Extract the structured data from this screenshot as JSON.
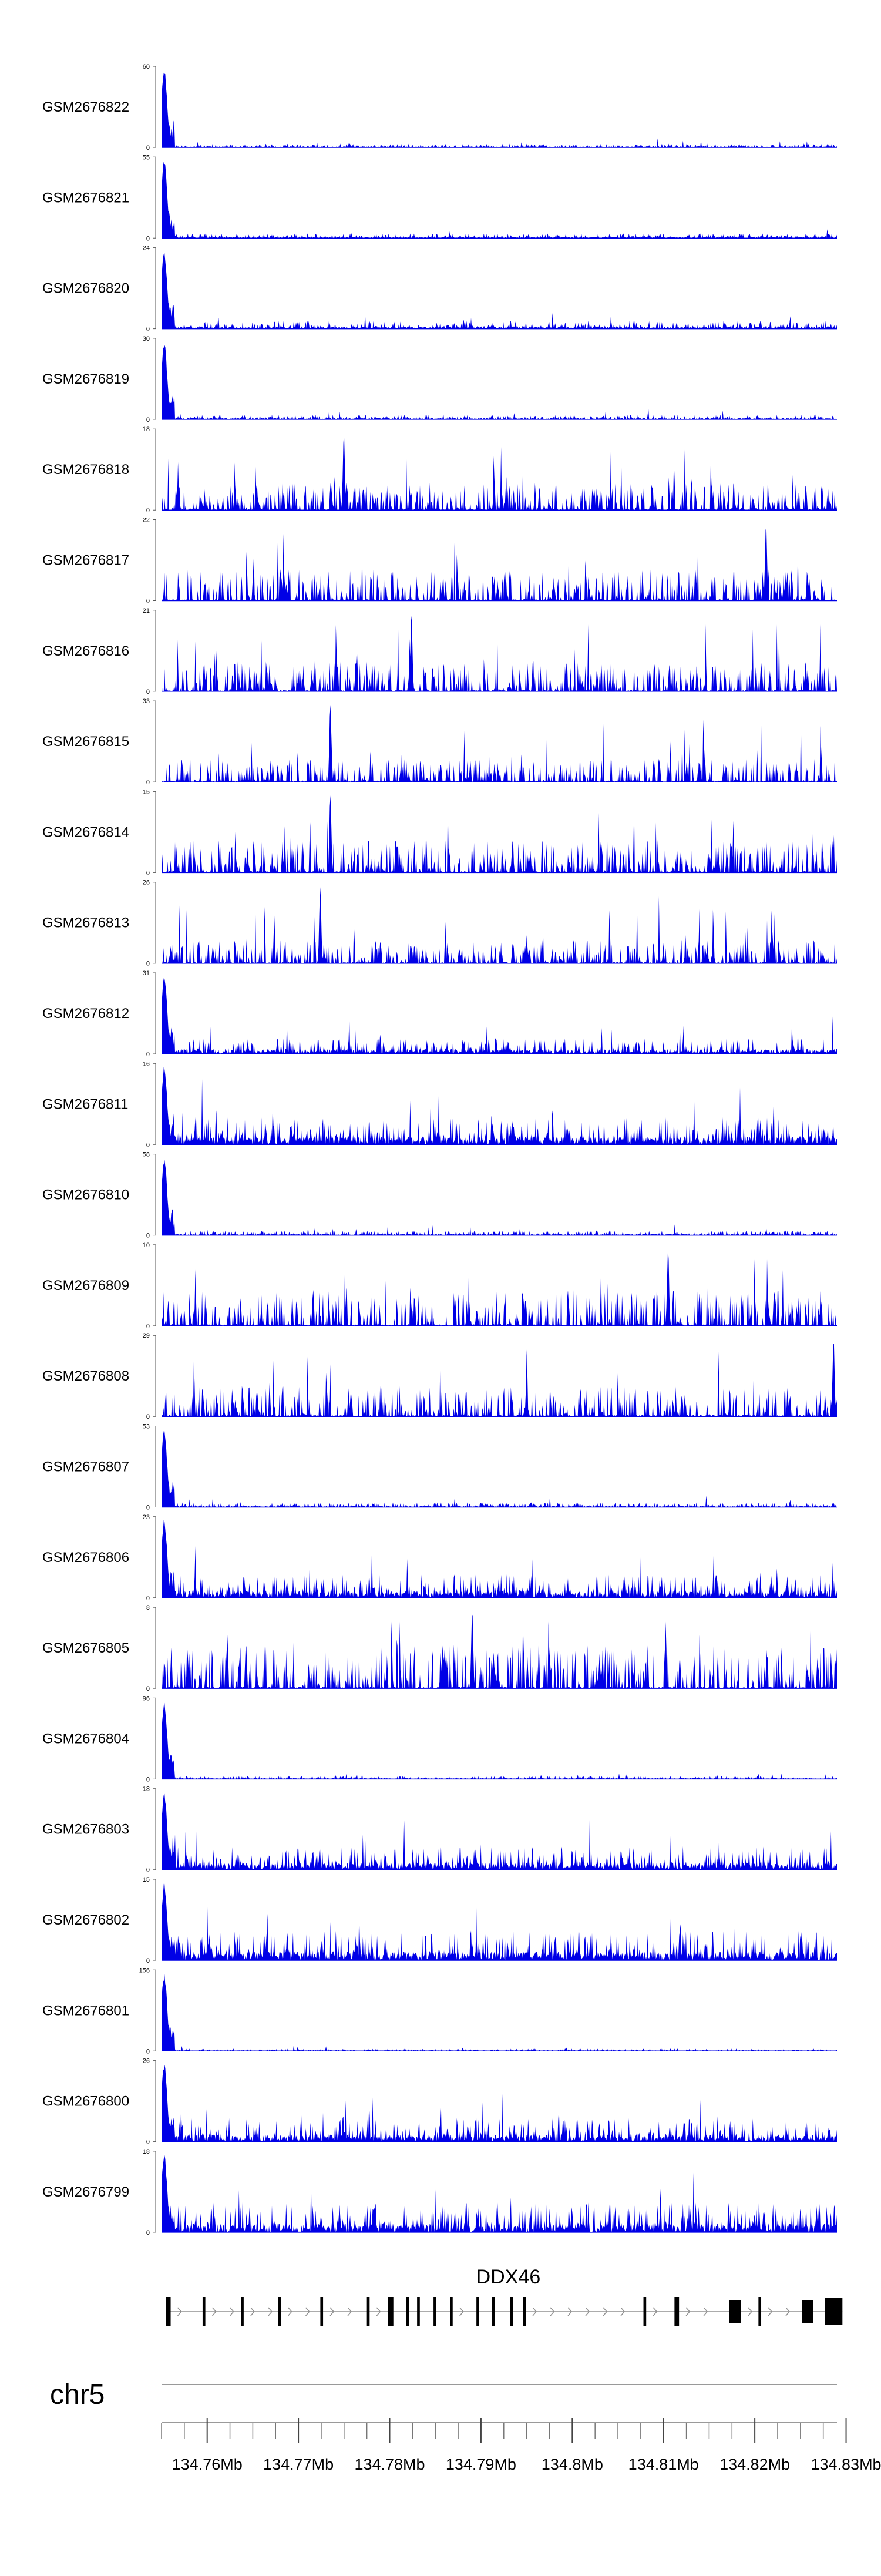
{
  "chart_data": {
    "type": "area",
    "title": "",
    "genome": {
      "chromosome": "chr5",
      "range_mb": [
        134.755,
        134.829
      ]
    },
    "tracks": [
      {
        "name": "GSM2676822",
        "ymax": 60,
        "profile": "promoter",
        "peak_pos": 0.004,
        "noise": 0.05
      },
      {
        "name": "GSM2676821",
        "ymax": 55,
        "profile": "promoter",
        "peak_pos": 0.004,
        "noise": 0.06
      },
      {
        "name": "GSM2676820",
        "ymax": 24,
        "profile": "promoter",
        "peak_pos": 0.004,
        "noise": 0.1
      },
      {
        "name": "GSM2676819",
        "ymax": 30,
        "profile": "promoter",
        "peak_pos": 0.004,
        "noise": 0.06
      },
      {
        "name": "GSM2676818",
        "ymax": 18,
        "profile": "body",
        "peak_pos": 0.27,
        "noise": 0.35
      },
      {
        "name": "GSM2676817",
        "ymax": 22,
        "profile": "body",
        "peak_pos": 0.895,
        "noise": 0.4
      },
      {
        "name": "GSM2676816",
        "ymax": 21,
        "profile": "body",
        "peak_pos": 0.37,
        "noise": 0.38
      },
      {
        "name": "GSM2676815",
        "ymax": 33,
        "profile": "body",
        "peak_pos": 0.25,
        "noise": 0.3
      },
      {
        "name": "GSM2676814",
        "ymax": 15,
        "profile": "body",
        "peak_pos": 0.25,
        "noise": 0.42
      },
      {
        "name": "GSM2676813",
        "ymax": 26,
        "profile": "body",
        "peak_pos": 0.235,
        "noise": 0.3
      },
      {
        "name": "GSM2676812",
        "ymax": 31,
        "profile": "promoter",
        "peak_pos": 0.004,
        "noise": 0.2
      },
      {
        "name": "GSM2676811",
        "ymax": 16,
        "profile": "promoter",
        "peak_pos": 0.004,
        "noise": 0.35
      },
      {
        "name": "GSM2676810",
        "ymax": 58,
        "profile": "promoter",
        "peak_pos": 0.004,
        "noise": 0.06
      },
      {
        "name": "GSM2676809",
        "ymax": 10,
        "profile": "body",
        "peak_pos": 0.75,
        "noise": 0.45
      },
      {
        "name": "GSM2676808",
        "ymax": 29,
        "profile": "body",
        "peak_pos": 0.995,
        "noise": 0.4
      },
      {
        "name": "GSM2676807",
        "ymax": 53,
        "profile": "promoter",
        "peak_pos": 0.004,
        "noise": 0.06
      },
      {
        "name": "GSM2676806",
        "ymax": 23,
        "profile": "promoter",
        "peak_pos": 0.004,
        "noise": 0.3
      },
      {
        "name": "GSM2676805",
        "ymax": 8,
        "profile": "body",
        "peak_pos": 0.46,
        "noise": 0.55
      },
      {
        "name": "GSM2676804",
        "ymax": 96,
        "profile": "promoter",
        "peak_pos": 0.004,
        "noise": 0.04
      },
      {
        "name": "GSM2676803",
        "ymax": 18,
        "profile": "promoter",
        "peak_pos": 0.004,
        "noise": 0.3
      },
      {
        "name": "GSM2676802",
        "ymax": 15,
        "profile": "promoter",
        "peak_pos": 0.004,
        "noise": 0.38
      },
      {
        "name": "GSM2676801",
        "ymax": 156,
        "profile": "promoter",
        "peak_pos": 0.004,
        "noise": 0.03
      },
      {
        "name": "GSM2676800",
        "ymax": 26,
        "profile": "promoter",
        "peak_pos": 0.004,
        "noise": 0.3
      },
      {
        "name": "GSM2676799",
        "ymax": 18,
        "profile": "promoter",
        "peak_pos": 0.004,
        "noise": 0.38
      }
    ],
    "y_zero_label": "0",
    "gene": {
      "name": "DDX46",
      "strand": "+",
      "exons": [
        [
          134.7555,
          134.756
        ],
        [
          134.7595,
          134.7598
        ],
        [
          134.7637,
          134.764
        ],
        [
          134.7678,
          134.7681
        ],
        [
          134.7724,
          134.7727
        ],
        [
          134.7775,
          134.7778
        ],
        [
          134.7798,
          134.7804
        ],
        [
          134.7818,
          134.7821
        ],
        [
          134.783,
          134.7833
        ],
        [
          134.7848,
          134.7851
        ],
        [
          134.7866,
          134.7869
        ],
        [
          134.7895,
          134.7898
        ],
        [
          134.7912,
          134.7915
        ],
        [
          134.7932,
          134.7935
        ],
        [
          134.7946,
          134.7949
        ],
        [
          134.8078,
          134.8081
        ],
        [
          134.8112,
          134.8117
        ],
        [
          134.8172,
          134.8185
        ],
        [
          134.8204,
          134.8207
        ],
        [
          134.8252,
          134.8264
        ],
        [
          134.8277,
          134.8296
        ]
      ]
    },
    "axis": {
      "ticks_mb": [
        134.76,
        134.77,
        134.78,
        134.79,
        134.8,
        134.81,
        134.82,
        134.83
      ],
      "tick_labels": [
        "134.76Mb",
        "134.77Mb",
        "134.78Mb",
        "134.79Mb",
        "134.8Mb",
        "134.81Mb",
        "134.82Mb",
        "134.83Mb"
      ],
      "minor_step_mb": 0.0025
    },
    "colors": {
      "signal": "#0000e6",
      "gene": "#000000",
      "intron_arrow": "#909090",
      "axis": "#9a9a9a"
    }
  }
}
